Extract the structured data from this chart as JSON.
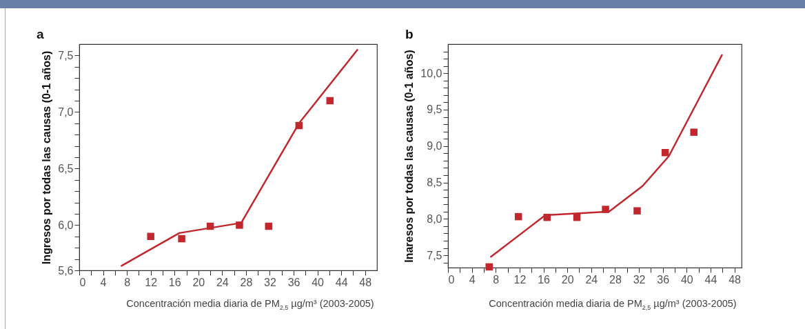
{
  "chart_data": [
    {
      "type": "scatter",
      "title": "a",
      "xlabel": "Concentración media diaria de PM$_{2,5}$ µg/m³ (2003-2005)",
      "ylabel": "Ingresos por todas las causas (0-1 años)",
      "xlim": [
        0,
        50
      ],
      "ylim": [
        5.6,
        7.6
      ],
      "xticks": [
        0,
        {
          "value": 2,
          "label": null
        },
        4,
        {
          "value": 6,
          "label": null
        },
        8,
        {
          "value": 10,
          "label": null
        },
        12,
        {
          "value": 14,
          "label": null
        },
        16,
        {
          "value": 18,
          "label": null
        },
        20,
        {
          "value": 22,
          "label": null
        },
        24,
        {
          "value": 26,
          "label": null
        },
        28,
        {
          "value": 30,
          "label": null
        },
        32,
        {
          "value": 34,
          "label": null
        },
        36,
        {
          "value": 38,
          "label": null
        },
        40,
        {
          "value": 42,
          "label": null
        },
        44,
        {
          "value": 46,
          "label": null
        },
        48
      ],
      "yticks": [
        {
          "value": 5.6,
          "label": "5,6"
        },
        {
          "value": 5.7,
          "label": null
        },
        {
          "value": 5.8,
          "label": null
        },
        {
          "value": 5.9,
          "label": null
        },
        {
          "value": 6.0,
          "label": "6,0"
        },
        {
          "value": 6.1,
          "label": null
        },
        {
          "value": 6.2,
          "label": null
        },
        {
          "value": 6.3,
          "label": null
        },
        {
          "value": 6.4,
          "label": null
        },
        {
          "value": 6.5,
          "label": "6,5"
        },
        {
          "value": 6.6,
          "label": null
        },
        {
          "value": 6.7,
          "label": null
        },
        {
          "value": 6.8,
          "label": null
        },
        {
          "value": 6.9,
          "label": null
        },
        {
          "value": 7.0,
          "label": "7,0"
        },
        {
          "value": 7.1,
          "label": null
        },
        {
          "value": 7.2,
          "label": null
        },
        {
          "value": 7.3,
          "label": null
        },
        {
          "value": 7.4,
          "label": null
        },
        {
          "value": 7.5,
          "label": "7,5"
        }
      ],
      "series": [
        {
          "type": "scatter",
          "marker": "square",
          "color": "#c1272d",
          "x": [
            12.0,
            17.2,
            22.0,
            26.9,
            31.8,
            36.9,
            42.1
          ],
          "values": [
            5.9,
            5.88,
            5.99,
            6.0,
            5.99,
            6.88,
            7.1
          ]
        },
        {
          "type": "line",
          "color": "#c1272d",
          "x": [
            7.1,
            16.8,
            27.2,
            36.9,
            46.7
          ],
          "values": [
            5.64,
            5.93,
            6.02,
            6.9,
            7.55
          ]
        }
      ]
    },
    {
      "type": "scatter",
      "title": "b",
      "xlabel": "Concentración media diaria de PM$_{2,5}$ µg/m³ (2003-2005)",
      "ylabel": "Inaresos por todas las causas (0-1 años)",
      "xlim": [
        0,
        49.2
      ],
      "ylim": [
        7.33,
        10.4
      ],
      "xticks": [
        0,
        {
          "value": 2,
          "label": null
        },
        4,
        {
          "value": 6,
          "label": null
        },
        8,
        {
          "value": 10,
          "label": null
        },
        12,
        {
          "value": 14,
          "label": null
        },
        16,
        {
          "value": 18,
          "label": null
        },
        20,
        {
          "value": 22,
          "label": null
        },
        24,
        {
          "value": 26,
          "label": null
        },
        28,
        {
          "value": 30,
          "label": null
        },
        32,
        {
          "value": 34,
          "label": null
        },
        36,
        {
          "value": 38,
          "label": null
        },
        40,
        {
          "value": 42,
          "label": null
        },
        44,
        {
          "value": 46,
          "label": null
        },
        48
      ],
      "yticks": [
        {
          "value": 7.4,
          "label": null
        },
        {
          "value": 7.5,
          "label": "7,5"
        },
        {
          "value": 7.6,
          "label": null
        },
        {
          "value": 7.7,
          "label": null
        },
        {
          "value": 7.8,
          "label": null
        },
        {
          "value": 7.9,
          "label": null
        },
        {
          "value": 8.0,
          "label": "8,0"
        },
        {
          "value": 8.1,
          "label": null
        },
        {
          "value": 8.2,
          "label": null
        },
        {
          "value": 8.3,
          "label": null
        },
        {
          "value": 8.4,
          "label": null
        },
        {
          "value": 8.5,
          "label": "8,5"
        },
        {
          "value": 8.6,
          "label": null
        },
        {
          "value": 8.7,
          "label": null
        },
        {
          "value": 8.8,
          "label": null
        },
        {
          "value": 8.9,
          "label": null
        },
        {
          "value": 9.0,
          "label": "9,0"
        },
        {
          "value": 9.1,
          "label": null
        },
        {
          "value": 9.2,
          "label": null
        },
        {
          "value": 9.3,
          "label": null
        },
        {
          "value": 9.4,
          "label": null
        },
        {
          "value": 9.5,
          "label": "9,5"
        },
        {
          "value": 9.6,
          "label": null
        },
        {
          "value": 9.7,
          "label": null
        },
        {
          "value": 9.8,
          "label": null
        },
        {
          "value": 9.9,
          "label": null
        },
        {
          "value": 10.0,
          "label": "10,0"
        },
        {
          "value": 10.1,
          "label": null
        },
        {
          "value": 10.2,
          "label": null
        },
        {
          "value": 10.3,
          "label": null
        }
      ],
      "series": [
        {
          "type": "scatter",
          "marker": "square",
          "color": "#c1272d",
          "x": [
            6.9,
            11.8,
            16.6,
            21.6,
            26.4,
            31.7,
            36.4,
            41.2
          ],
          "values": [
            7.34,
            8.03,
            8.02,
            8.02,
            8.13,
            8.11,
            8.91,
            9.19
          ]
        },
        {
          "type": "line",
          "color": "#c1272d",
          "x": [
            7.2,
            16.3,
            27.0,
            32.6,
            37.0,
            45.9
          ],
          "values": [
            7.48,
            8.05,
            8.1,
            8.45,
            8.86,
            10.25
          ]
        }
      ]
    }
  ]
}
